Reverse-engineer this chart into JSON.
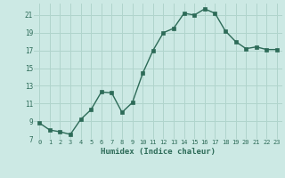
{
  "x": [
    0,
    1,
    2,
    3,
    4,
    5,
    6,
    7,
    8,
    9,
    10,
    11,
    12,
    13,
    14,
    15,
    16,
    17,
    18,
    19,
    20,
    21,
    22,
    23
  ],
  "y": [
    8.8,
    8.0,
    7.8,
    7.5,
    9.2,
    10.3,
    12.3,
    12.2,
    10.0,
    11.1,
    14.4,
    17.0,
    19.0,
    19.5,
    21.2,
    21.0,
    21.7,
    21.2,
    19.2,
    18.0,
    17.2,
    17.4,
    17.1,
    17.1
  ],
  "xlabel": "Humidex (Indice chaleur)",
  "bg_color": "#cce9e4",
  "grid_color": "#b0d4cc",
  "line_color": "#2d6b58",
  "marker_color": "#2d6b58",
  "ylim": [
    7,
    22
  ],
  "xlim": [
    -0.5,
    23.5
  ],
  "yticks": [
    7,
    9,
    11,
    13,
    15,
    17,
    19,
    21
  ],
  "xticks": [
    0,
    1,
    2,
    3,
    4,
    5,
    6,
    7,
    8,
    9,
    10,
    11,
    12,
    13,
    14,
    15,
    16,
    17,
    18,
    19,
    20,
    21,
    22,
    23
  ]
}
